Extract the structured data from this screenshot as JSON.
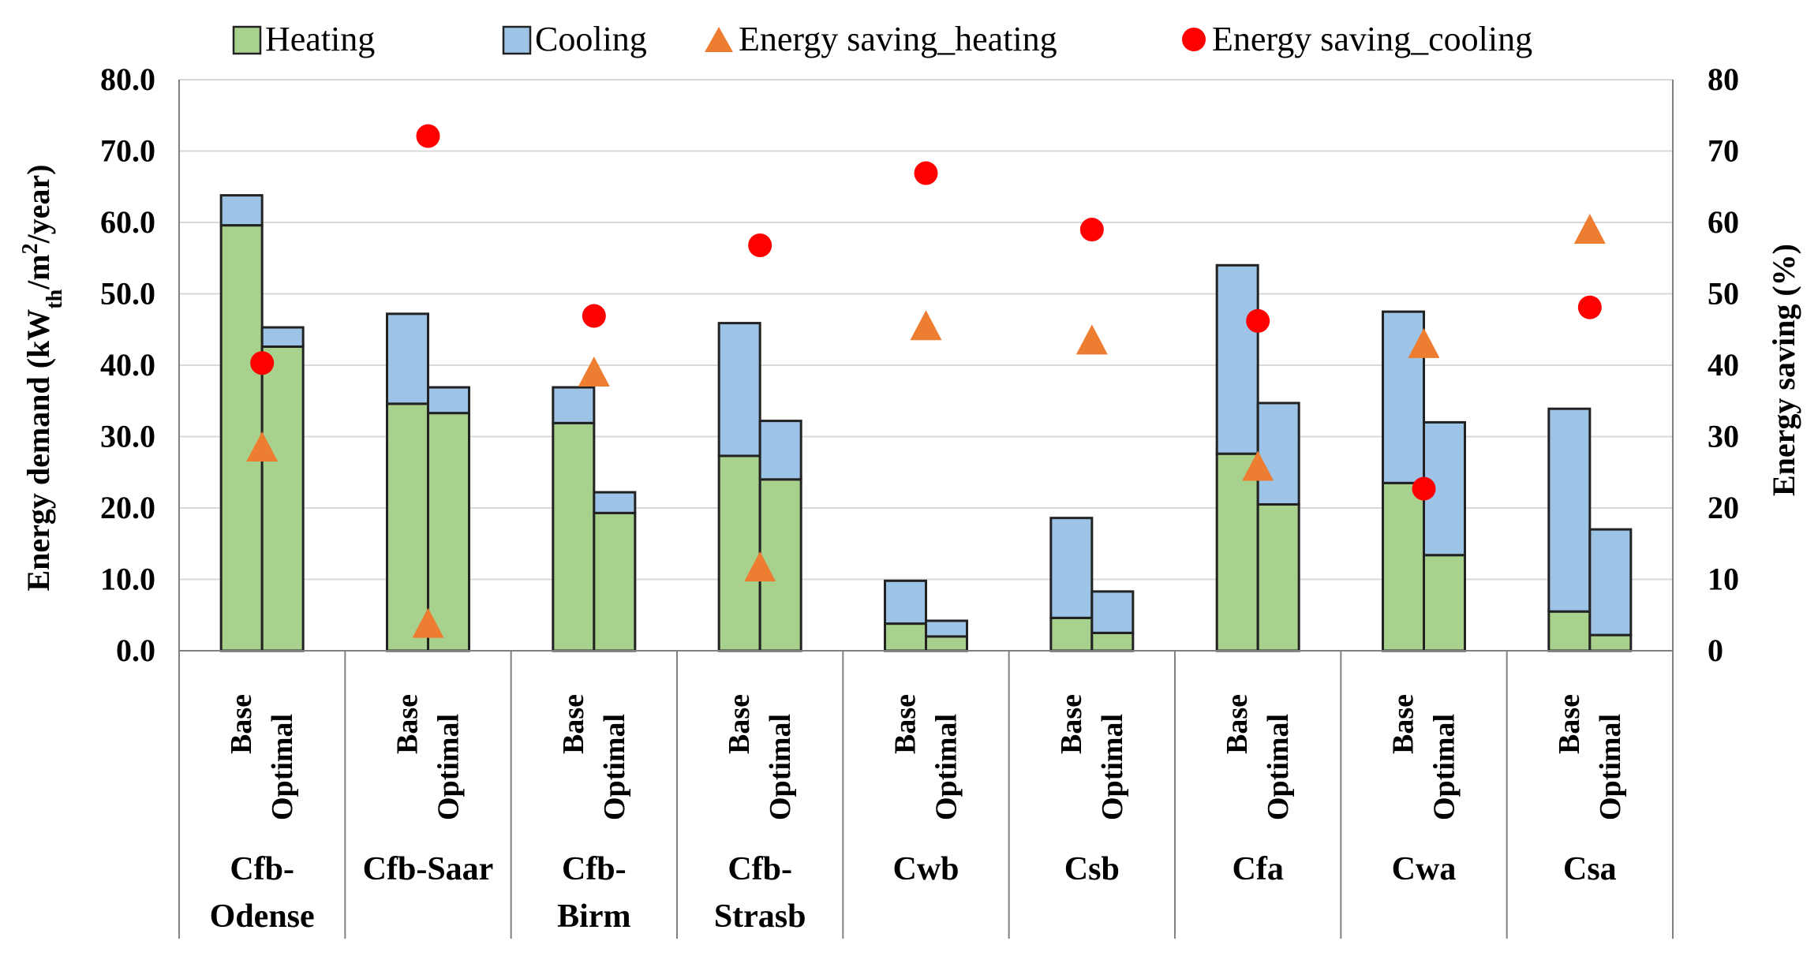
{
  "chart_data": {
    "type": "bar",
    "subtype": "stacked-bar-with-scatter-secondary-axis",
    "groups": [
      "Cfb-Odense",
      "Cfb-Saar",
      "Cfb-Birm",
      "Cfb-Strasb",
      "Cwb",
      "Csb",
      "Cfa",
      "Cwa",
      "Csa"
    ],
    "group_label_lines": [
      [
        "Cfb-",
        "Odense"
      ],
      [
        "Cfb-Saar"
      ],
      [
        "Cfb-",
        "Birm"
      ],
      [
        "Cfb-",
        "Strasb"
      ],
      [
        "Cwb"
      ],
      [
        "Csb"
      ],
      [
        "Cfa"
      ],
      [
        "Cwa"
      ],
      [
        "Csa"
      ]
    ],
    "sub_categories": [
      "Base",
      "Optimal"
    ],
    "series": [
      {
        "name": "Heating",
        "kind": "bar",
        "axis": "left",
        "color": "#a9d18e",
        "values": [
          [
            59.6,
            42.6
          ],
          [
            34.6,
            33.3
          ],
          [
            31.9,
            19.3
          ],
          [
            27.3,
            24.0
          ],
          [
            3.8,
            2.0
          ],
          [
            4.6,
            2.5
          ],
          [
            27.6,
            20.5
          ],
          [
            23.5,
            13.4
          ],
          [
            5.5,
            2.2
          ]
        ]
      },
      {
        "name": "Cooling",
        "kind": "bar",
        "axis": "left",
        "color": "#9dc3e6",
        "values": [
          [
            4.2,
            2.7
          ],
          [
            12.6,
            3.6
          ],
          [
            5.0,
            2.9
          ],
          [
            18.6,
            8.2
          ],
          [
            6.0,
            2.2
          ],
          [
            14.0,
            5.8
          ],
          [
            26.4,
            14.2
          ],
          [
            24.0,
            18.6
          ],
          [
            28.4,
            14.8
          ]
        ]
      },
      {
        "name": "Energy saving_heating",
        "kind": "scatter",
        "marker": "triangle",
        "axis": "right",
        "color": "#ed7d31",
        "values": [
          28.5,
          3.8,
          39.0,
          11.7,
          45.5,
          43.5,
          25.8,
          43.0,
          59.0
        ]
      },
      {
        "name": "Energy saving_cooling",
        "kind": "scatter",
        "marker": "circle",
        "axis": "right",
        "color": "#ff0000",
        "values": [
          40.3,
          72.1,
          46.9,
          56.8,
          66.9,
          59.0,
          46.2,
          22.7,
          48.1
        ]
      }
    ],
    "legend": [
      "Heating",
      "Cooling",
      "Energy saving_heating",
      "Energy saving_cooling"
    ],
    "legend_position": "top",
    "ylabel_left": "Energy demand (kWth/m2/year)",
    "ylabel_left_parts": [
      "Energy demand (kW",
      "th",
      "/m",
      "2",
      "/year)"
    ],
    "ylabel_right": "Energy saving (%)",
    "ylim_left": [
      0,
      80
    ],
    "ylim_right": [
      0,
      80
    ],
    "yticks_left": [
      "0.0",
      "10.0",
      "20.0",
      "30.0",
      "40.0",
      "50.0",
      "60.0",
      "70.0",
      "80.0"
    ],
    "yticks_right": [
      "0",
      "10",
      "20",
      "30",
      "40",
      "50",
      "60",
      "70",
      "80"
    ],
    "grid": true
  }
}
